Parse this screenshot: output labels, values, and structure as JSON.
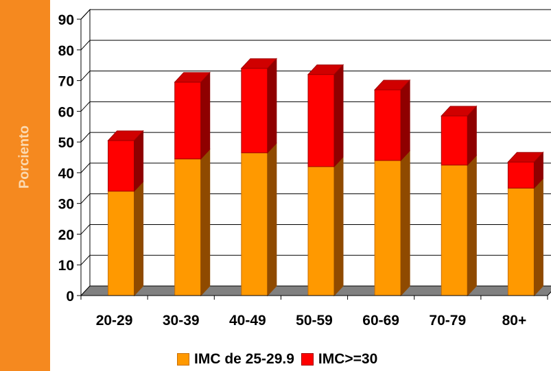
{
  "chart_data": {
    "type": "bar",
    "stacked": true,
    "three_d": true,
    "categories": [
      "20-29",
      "30-39",
      "40-49",
      "50-59",
      "60-69",
      "70-79",
      "80+"
    ],
    "series": [
      {
        "name": "IMC de 25-29.9",
        "values": [
          34,
          44.5,
          46.5,
          42,
          44,
          42.5,
          35
        ],
        "color": "#ff9900"
      },
      {
        "name": "IMC>=30",
        "values": [
          16.5,
          25,
          27.5,
          30,
          23,
          16,
          8.5
        ],
        "color": "#ff0000"
      }
    ],
    "ylabel": "Porciento",
    "ylim": [
      0,
      90
    ],
    "yticks": [
      0,
      10,
      20,
      30,
      40,
      50,
      60,
      70,
      80,
      90
    ],
    "grid": true,
    "legend_position": "bottom"
  }
}
